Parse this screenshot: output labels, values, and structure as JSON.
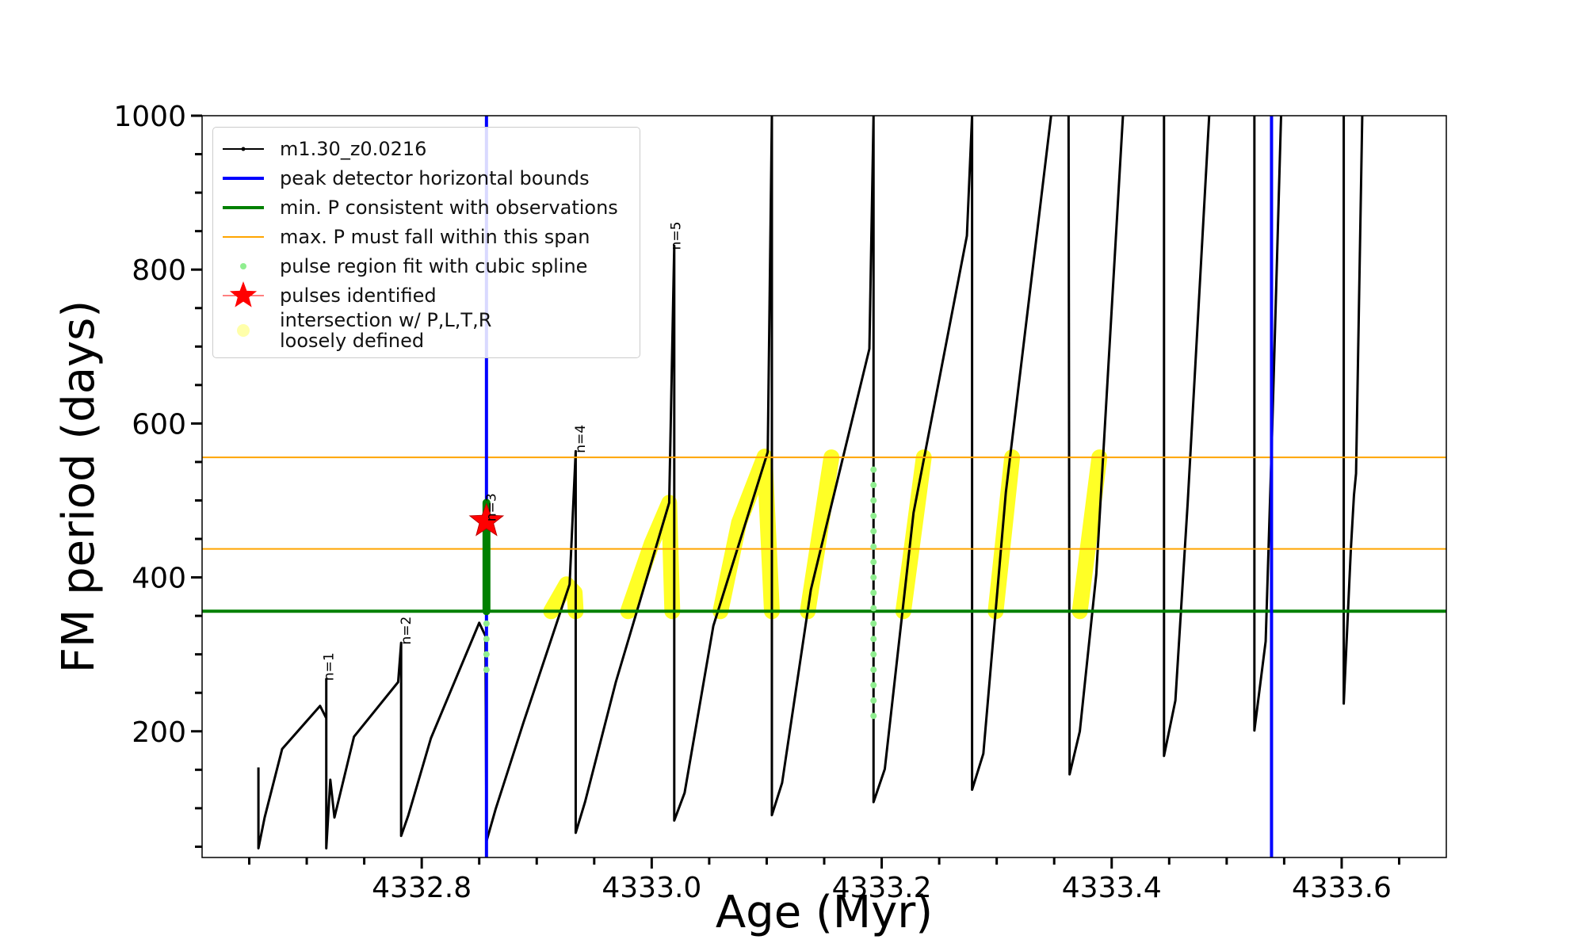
{
  "chart_data": {
    "type": "line",
    "xlabel": "Age (Myr)",
    "ylabel": "FM period (days)",
    "xlim": [
      4332.609,
      4333.691
    ],
    "ylim": [
      36,
      1000
    ],
    "xticks": [
      4332.8,
      {
        "value": 4333,
        "label": "4333.0"
      },
      4333.2,
      4333.4,
      4333.6
    ],
    "xminor": [
      4332.65,
      4332.7,
      4332.75,
      4332.85,
      4332.9,
      4332.95,
      4333.05,
      4333.1,
      4333.15,
      4333.25,
      4333.3,
      4333.35,
      4333.45,
      4333.5,
      4333.55,
      4333.65
    ],
    "yticks": [
      200,
      400,
      600,
      800,
      1000
    ],
    "yminor": [
      50,
      100,
      150,
      250,
      300,
      350,
      450,
      500,
      550,
      650,
      700,
      750,
      850,
      900,
      950
    ],
    "series": [
      {
        "name": "m1.30_z0.0216",
        "kind": "line",
        "color": "#000000",
        "x": [
          4332.658,
          4332.658,
          4332.6634,
          4332.6786,
          4332.7116,
          4332.717,
          4332.717,
          4332.717,
          4332.7205,
          4332.7241,
          4332.7411,
          4332.7795,
          4332.7821,
          4332.7821,
          4332.7884,
          4332.808,
          4332.85,
          4332.8554,
          4332.8563,
          4332.8643,
          4332.8884,
          4332.9286,
          4332.9339,
          4332.9339,
          4332.942,
          4332.9688,
          4333.0152,
          4333.0196,
          4333.0196,
          4333.0286,
          4333.0536,
          4333.1009,
          4333.1045,
          4333.1045,
          4333.1134,
          4333.1384,
          4333.1893,
          4333.1929,
          4333.1929,
          4333.2027,
          4333.2277,
          4333.2741,
          4333.2786,
          4333.2786,
          4333.2884,
          4333.308,
          4333.3473,
          null,
          4333.3625,
          4333.3634,
          4333.3723,
          4333.3866,
          4333.4098,
          null,
          4333.4455,
          4333.4455,
          4333.4554,
          4333.4661,
          4333.4848,
          null,
          4333.5241,
          4333.5241,
          4333.5339,
          4333.5393,
          4333.5473,
          null,
          4333.6018,
          4333.6018,
          4333.608,
          4333.6107,
          4333.6125,
          4333.6179
        ],
        "y": [
          153,
          48,
          88,
          177,
          233,
          217,
          268,
          48,
          137,
          88,
          193,
          264,
          315,
          64,
          91,
          191,
          341,
          324,
          57,
          99,
          211,
          391,
          564,
          68,
          108,
          264,
          497,
          831,
          84,
          120,
          337,
          563,
          1000,
          91,
          133,
          384,
          697,
          1000,
          108,
          151,
          484,
          844,
          1000,
          124,
          171,
          511,
          1000,
          null,
          1000,
          144,
          200,
          404,
          1000,
          null,
          1000,
          168,
          240,
          497,
          1000,
          null,
          1000,
          201,
          317,
          577,
          1000,
          null,
          1000,
          236,
          437,
          507,
          535,
          1000
        ]
      },
      {
        "name": "peak detector horizontal bounds",
        "kind": "vline",
        "color": "#0000ff",
        "x": [
          4332.8563,
          4333.539
        ]
      },
      {
        "name": "min. P consistent with observations",
        "kind": "hline",
        "color": "#008000",
        "y": [
          356
        ]
      },
      {
        "name": "max. P must fall within this span",
        "kind": "hline",
        "color": "#ffa500",
        "y": [
          437,
          556
        ]
      },
      {
        "name": "pulse region fit with cubic spline",
        "kind": "scatter",
        "color": "#90ee90",
        "x": [
          4332.8563,
          4332.8563,
          4332.8563,
          4332.8563,
          4332.8563,
          4332.8563,
          4332.8563,
          4332.8563,
          4332.8563,
          4332.8563,
          4333.1929,
          4333.1929,
          4333.1929,
          4333.1929,
          4333.1929,
          4333.1929,
          4333.1929,
          4333.1929,
          4333.1929,
          4333.1929,
          4333.1929,
          4333.1929,
          4333.1929,
          4333.1929,
          4333.1929,
          4333.1929,
          4333.1929
        ],
        "y": [
          280,
          300,
          320,
          340,
          360,
          380,
          400,
          420,
          440,
          460,
          220,
          240,
          260,
          280,
          300,
          320,
          340,
          360,
          380,
          400,
          420,
          440,
          460,
          480,
          500,
          520,
          540
        ]
      },
      {
        "name": "pulses identified",
        "kind": "star",
        "color": "#ff0000",
        "x": [
          4332.8563
        ],
        "y": [
          473
        ]
      },
      {
        "name": "intersection w/ P,L,T,R\nloosely defined",
        "kind": "band",
        "color": "#ffff00",
        "x": [
          4332.9125,
          4332.9259,
          4332.933,
          4332.9339,
          null,
          4332.9795,
          4333.0,
          4333.0152,
          4333.0179,
          null,
          4333.0598,
          4333.0759,
          4333.0982,
          4333.1045,
          null,
          4333.1357,
          4333.1563,
          null,
          4333.2188,
          4333.2366,
          null,
          4333.2991,
          4333.3134,
          null,
          4333.3723,
          4333.3893
        ],
        "y": [
          356,
          391,
          380,
          356,
          null,
          356,
          444,
          497,
          356,
          null,
          356,
          471,
          557,
          356,
          null,
          356,
          556,
          null,
          356,
          556,
          null,
          356,
          556,
          null,
          356,
          556
        ]
      }
    ],
    "highlight": {
      "color": "#008000",
      "x": [
        4332.8563,
        4332.8563
      ],
      "y": [
        356,
        497
      ]
    },
    "annotations": [
      {
        "text": "n=1",
        "x": 4332.7232,
        "y": 284
      },
      {
        "text": "n=2",
        "x": 4332.7902,
        "y": 331
      },
      {
        "text": "n=3",
        "x": 4332.8643,
        "y": 491
      },
      {
        "text": "n=4",
        "x": 4332.942,
        "y": 580
      },
      {
        "text": "n=5",
        "x": 4333.025,
        "y": 844
      }
    ]
  }
}
